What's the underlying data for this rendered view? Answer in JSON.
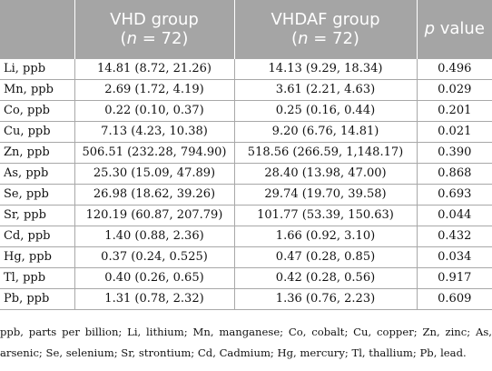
{
  "header": {
    "col0": "",
    "vhd_title": "VHD group",
    "vhd_n": "(n = 72)",
    "vhdaf_title": "VHDAF group",
    "vhdaf_n": "(n = 72)",
    "p_label": "p value"
  },
  "rows": [
    {
      "label": "Li, ppb",
      "vhd": "14.81 (8.72, 21.26)",
      "vhdaf": "14.13 (9.29, 18.34)",
      "p": "0.496"
    },
    {
      "label": "Mn, ppb",
      "vhd": "2.69 (1.72, 4.19)",
      "vhdaf": "3.61 (2.21, 4.63)",
      "p": "0.029"
    },
    {
      "label": "Co, ppb",
      "vhd": "0.22 (0.10, 0.37)",
      "vhdaf": "0.25 (0.16, 0.44)",
      "p": "0.201"
    },
    {
      "label": "Cu, ppb",
      "vhd": "7.13 (4.23, 10.38)",
      "vhdaf": "9.20 (6.76, 14.81)",
      "p": "0.021"
    },
    {
      "label": "Zn, ppb",
      "vhd": "506.51 (232.28, 794.90)",
      "vhdaf": "518.56 (266.59, 1,148.17)",
      "p": "0.390"
    },
    {
      "label": "As, ppb",
      "vhd": "25.30 (15.09, 47.89)",
      "vhdaf": "28.40 (13.98, 47.00)",
      "p": "0.868"
    },
    {
      "label": "Se, ppb",
      "vhd": "26.98 (18.62, 39.26)",
      "vhdaf": "29.74 (19.70, 39.58)",
      "p": "0.693"
    },
    {
      "label": "Sr, ppb",
      "vhd": "120.19 (60.87, 207.79)",
      "vhdaf": "101.77 (53.39, 150.63)",
      "p": "0.044"
    },
    {
      "label": "Cd, ppb",
      "vhd": "1.40 (0.88, 2.36)",
      "vhdaf": "1.66 (0.92, 3.10)",
      "p": "0.432"
    },
    {
      "label": "Hg, ppb",
      "vhd": "0.37 (0.24, 0.525)",
      "vhdaf": "0.47 (0.28, 0.85)",
      "p": "0.034"
    },
    {
      "label": "Tl, ppb",
      "vhd": "0.40 (0.26, 0.65)",
      "vhdaf": "0.42 (0.28, 0.56)",
      "p": "0.917"
    },
    {
      "label": "Pb, ppb",
      "vhd": "1.31 (0.78, 2.32)",
      "vhdaf": "1.36 (0.76, 2.23)",
      "p": "0.609"
    }
  ],
  "footnote": "ppb, parts per billion; Li, lithium; Mn, manganese; Co, cobalt; Cu, copper; Zn, zinc; As, arsenic; Se, selenium; Sr, strontium; Cd, Cadmium; Hg, mercury; Tl, thallium; Pb, lead.",
  "colors": {
    "header_bg": "#a5a5a5",
    "header_text": "#ffffff",
    "grid_line": "#a8a8a8"
  }
}
